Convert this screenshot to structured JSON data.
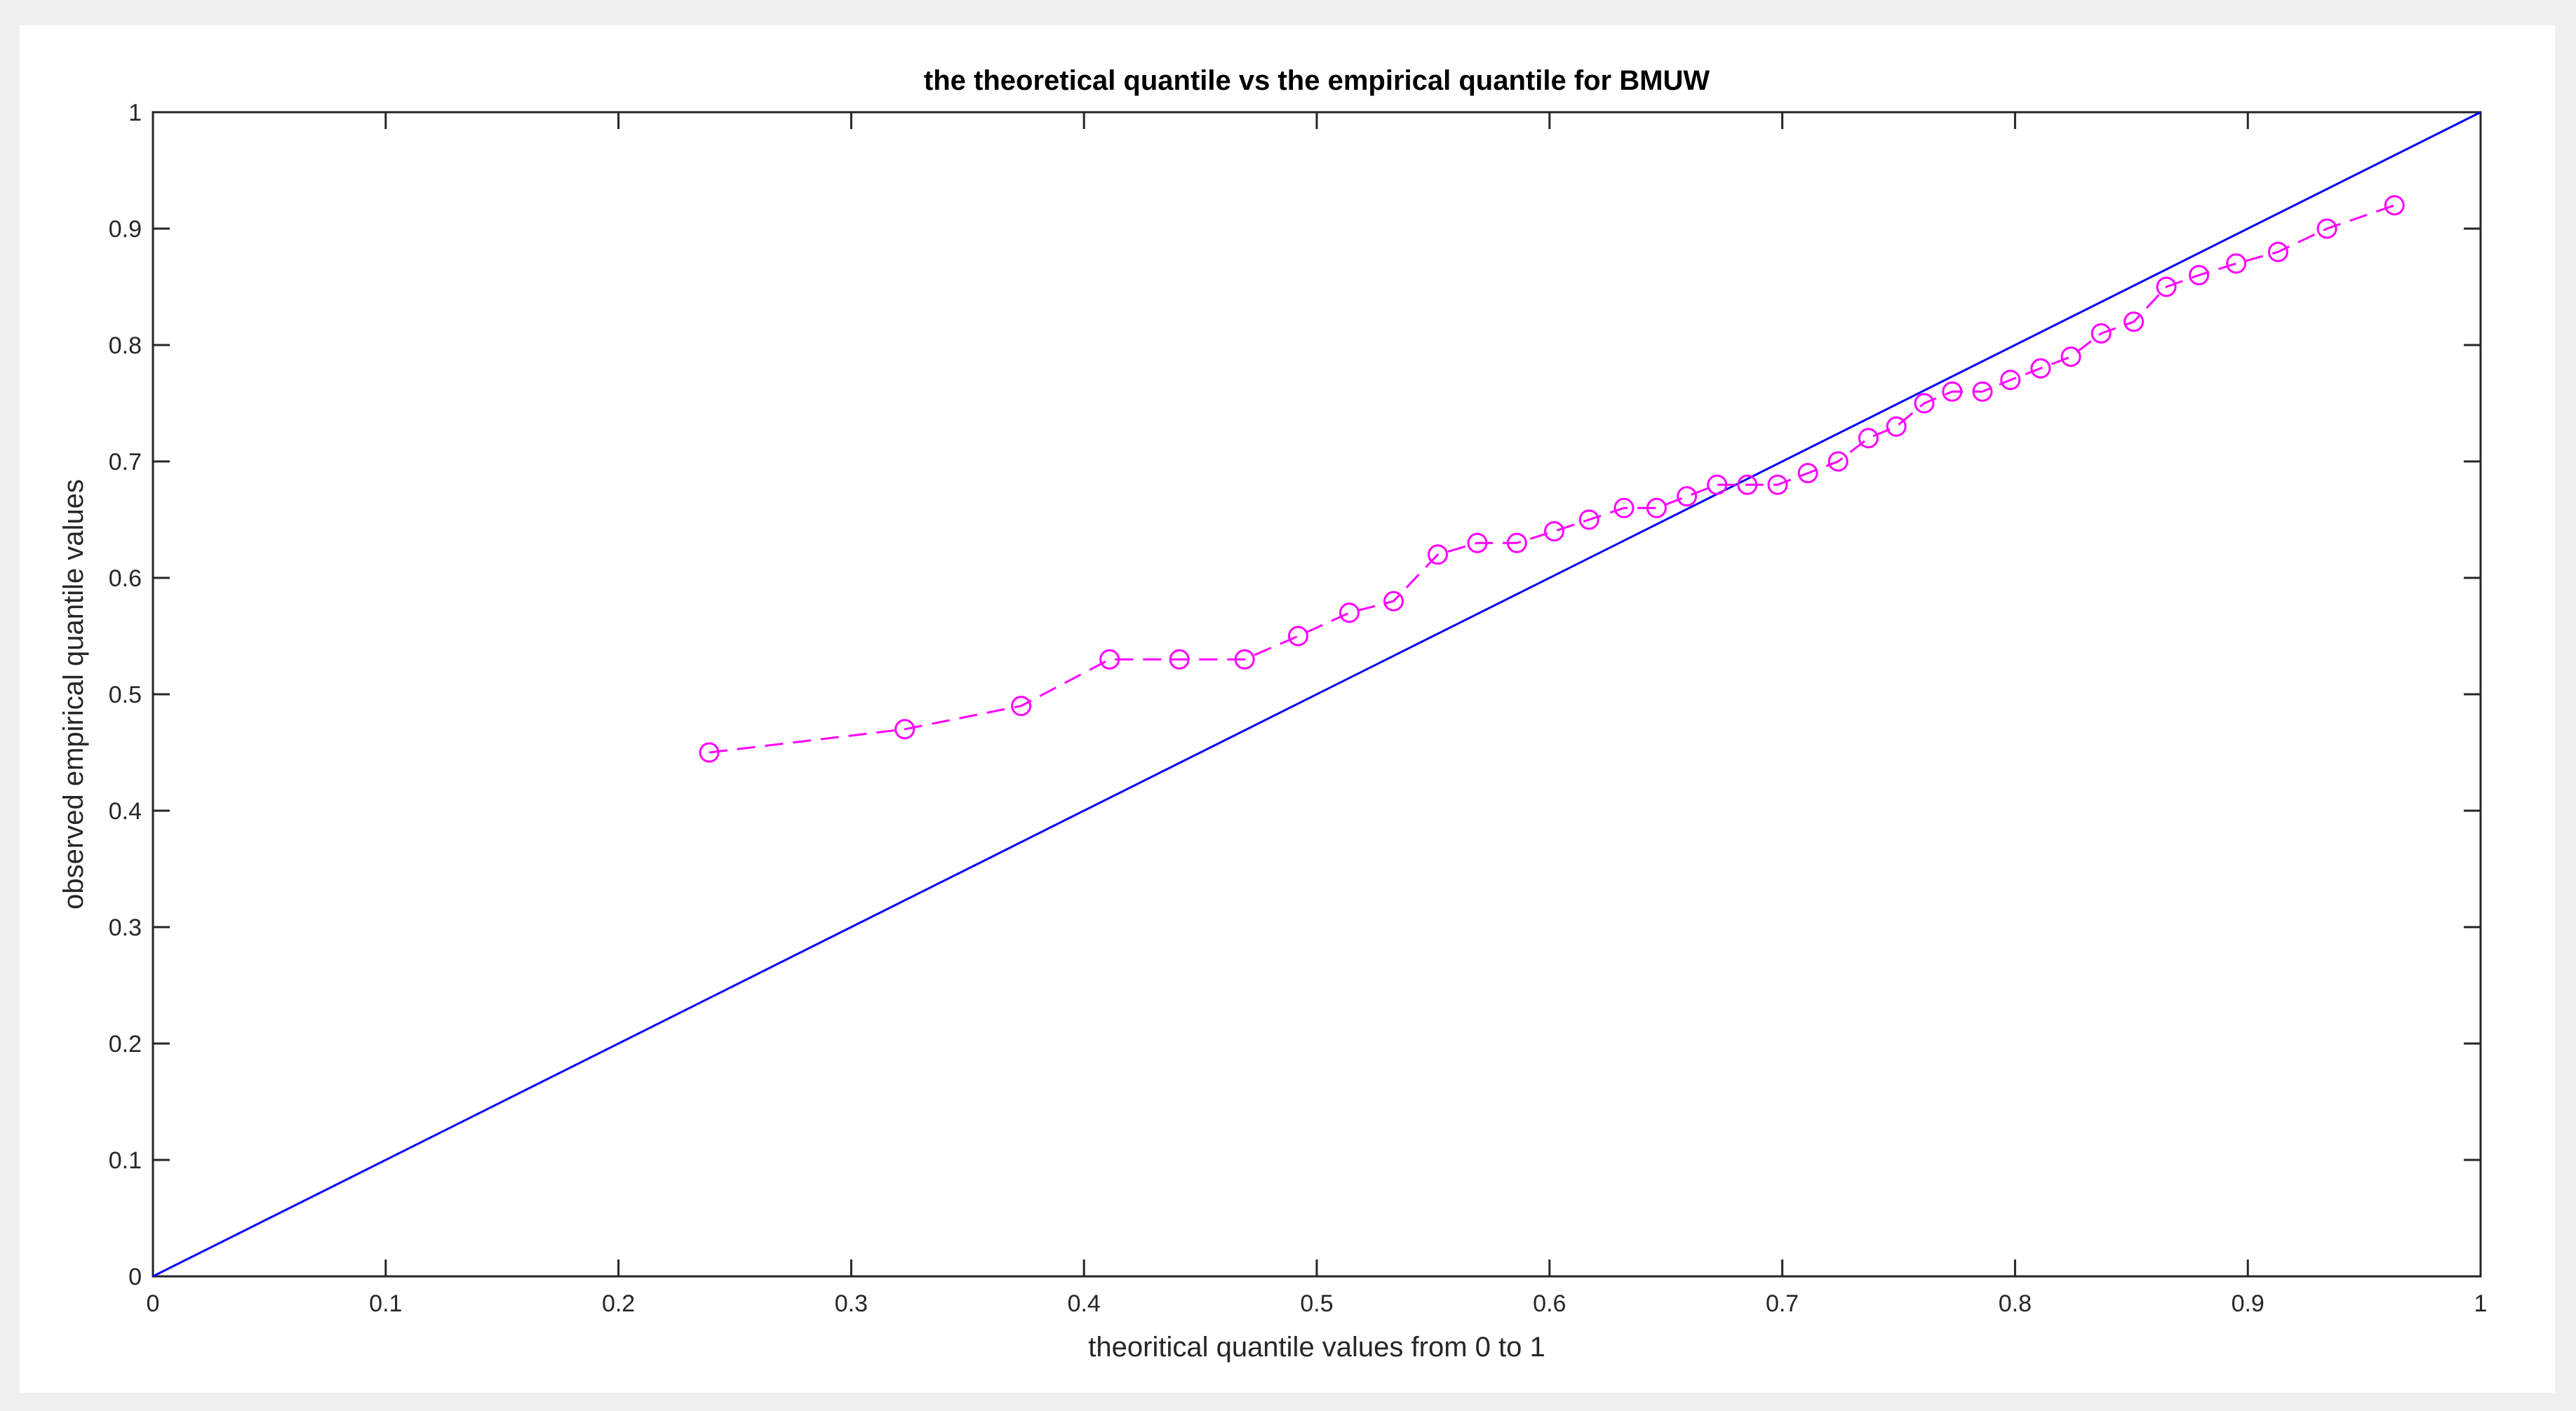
{
  "chart_data": {
    "type": "line",
    "title": "the theoretical quantile vs the empirical quantile for BMUW",
    "xlabel": "theoritical quantile values from 0 to 1",
    "ylabel": "observed empirical quantile  values",
    "xlim": [
      0,
      1
    ],
    "ylim": [
      0,
      1
    ],
    "xticks": [
      "0",
      "0.1",
      "0.2",
      "0.3",
      "0.4",
      "0.5",
      "0.6",
      "0.7",
      "0.8",
      "0.9",
      "1"
    ],
    "yticks": [
      "0",
      "0.1",
      "0.2",
      "0.3",
      "0.4",
      "0.5",
      "0.6",
      "0.7",
      "0.8",
      "0.9",
      "1"
    ],
    "grid": false,
    "series": [
      {
        "style": "solid-line",
        "color": "#0000ff",
        "x": [
          0,
          1
        ],
        "y": [
          0,
          1
        ]
      },
      {
        "style": "dashed-line-circle-markers",
        "color": "#ff00ff",
        "x": [
          0.239,
          0.323,
          0.373,
          0.411,
          0.441,
          0.469,
          0.492,
          0.514,
          0.533,
          0.552,
          0.569,
          0.586,
          0.602,
          0.617,
          0.632,
          0.646,
          0.659,
          0.672,
          0.685,
          0.698,
          0.711,
          0.724,
          0.737,
          0.749,
          0.761,
          0.773,
          0.786,
          0.798,
          0.811,
          0.824,
          0.837,
          0.851,
          0.865,
          0.879,
          0.895,
          0.913,
          0.934,
          0.963
        ],
        "y": [
          0.45,
          0.47,
          0.49,
          0.53,
          0.53,
          0.53,
          0.55,
          0.57,
          0.58,
          0.62,
          0.63,
          0.63,
          0.64,
          0.65,
          0.66,
          0.66,
          0.67,
          0.68,
          0.68,
          0.68,
          0.69,
          0.7,
          0.72,
          0.73,
          0.75,
          0.76,
          0.76,
          0.77,
          0.78,
          0.79,
          0.81,
          0.82,
          0.85,
          0.86,
          0.87,
          0.88,
          0.9,
          0.92
        ]
      }
    ]
  }
}
